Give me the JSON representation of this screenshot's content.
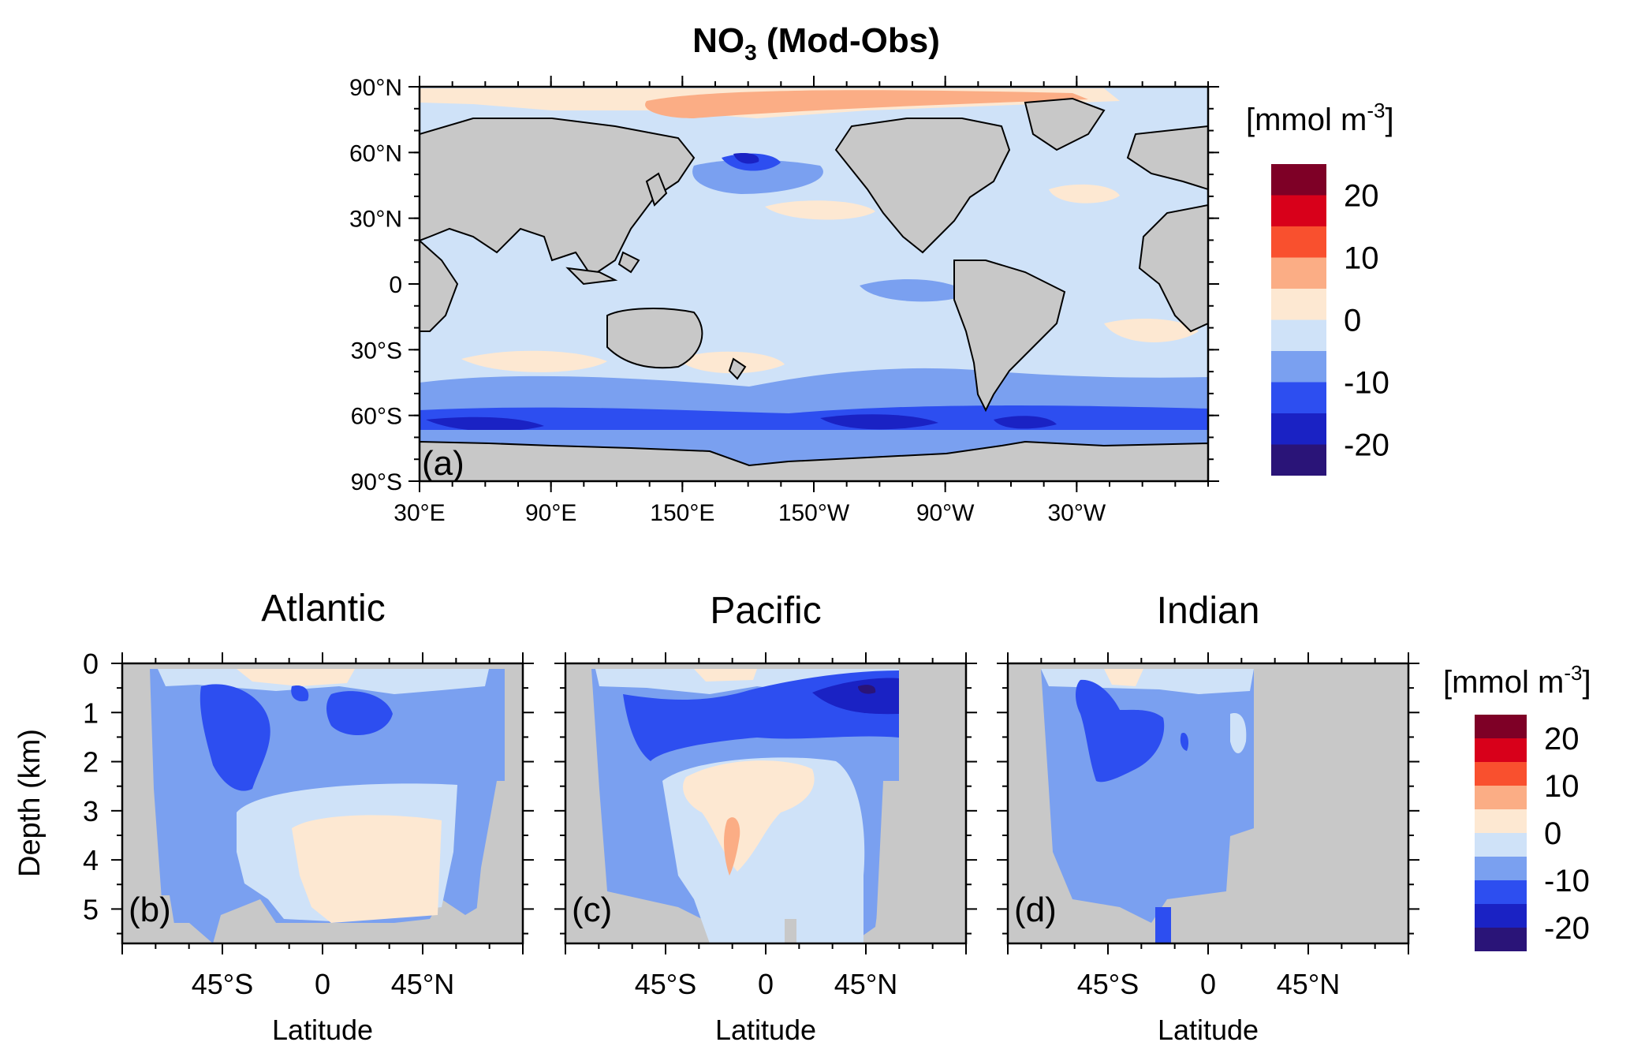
{
  "figure": {
    "title_main": "NO",
    "title_sub": "3",
    "title_rest": " (Mod-Obs)"
  },
  "colors": {
    "land": "#c8c8c8",
    "levels": [
      "#2a1478",
      "#1a22c4",
      "#2d4ef0",
      "#7aa0f0",
      "#cfe2f8",
      "#fde8d2",
      "#fbad85",
      "#f9502e",
      "#d8001a",
      "#7e0026"
    ]
  },
  "chart_data": [
    {
      "panel": "(a)",
      "type": "heatmap",
      "title": "NO3 (Mod-Obs)",
      "xticks": [
        "30°E",
        "90°E",
        "150°E",
        "150°W",
        "90°W",
        "30°W"
      ],
      "yticks": [
        "90°N",
        "60°N",
        "30°N",
        "0",
        "30°S",
        "60°S",
        "90°S"
      ],
      "xlim": [
        30,
        390
      ],
      "ylim": [
        -90,
        90
      ],
      "colorbar": {
        "unit_label": "[mmol m",
        "unit_exp": "-3",
        "unit_close": "]",
        "tick_labels": [
          "20",
          "10",
          "0",
          "-10",
          "-20"
        ],
        "levels": [
          -25,
          -20,
          -15,
          -10,
          -5,
          0,
          5,
          10,
          15,
          20,
          25
        ]
      }
    },
    {
      "panel": "(b)",
      "type": "heatmap",
      "title": "Atlantic",
      "xlabel": "Latitude",
      "ylabel": "Depth (km)",
      "xticks": [
        "45°S",
        "0",
        "45°N"
      ],
      "yticks": [
        "0",
        "1",
        "2",
        "3",
        "4",
        "5"
      ],
      "ylim": [
        0,
        5.7
      ]
    },
    {
      "panel": "(c)",
      "type": "heatmap",
      "title": "Pacific",
      "xlabel": "Latitude",
      "xticks": [
        "45°S",
        "0",
        "45°N"
      ],
      "ylim": [
        0,
        5.7
      ]
    },
    {
      "panel": "(d)",
      "type": "heatmap",
      "title": "Indian",
      "xlabel": "Latitude",
      "xticks": [
        "45°S",
        "0",
        "45°N"
      ],
      "ylim": [
        0,
        5.7
      ],
      "colorbar": {
        "unit_label": "[mmol m",
        "unit_exp": "-3",
        "unit_close": "]",
        "tick_labels": [
          "20",
          "10",
          "0",
          "-10",
          "-20"
        ]
      }
    }
  ]
}
